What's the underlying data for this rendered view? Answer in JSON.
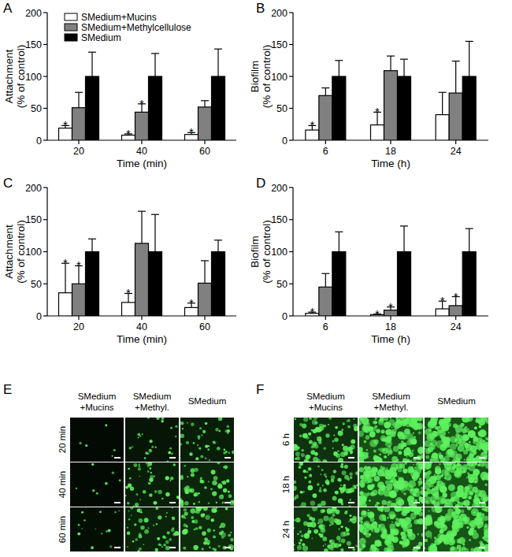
{
  "chart_data": [
    {
      "panel": "A",
      "type": "bar",
      "categories": [
        "20",
        "40",
        "60"
      ],
      "xlabel": "Time (min)",
      "ylabel": [
        "Attachment",
        "(% of control)"
      ],
      "ylim": [
        0,
        200
      ],
      "yticks": [
        0,
        50,
        100,
        150,
        200
      ],
      "legend": "upper left",
      "annotation": "*",
      "series": [
        {
          "name": "SMedium+Mucins",
          "color": "#ffffff",
          "values": [
            19,
            8,
            9
          ],
          "errors": [
            4,
            2,
            3
          ],
          "significant": [
            true,
            true,
            true
          ]
        },
        {
          "name": "SMedium+Methylcellulose",
          "color": "#808080",
          "values": [
            51,
            44,
            52
          ],
          "errors": [
            24,
            13,
            10
          ],
          "significant": [
            false,
            true,
            false
          ]
        },
        {
          "name": "SMedium",
          "color": "#000000",
          "values": [
            100,
            100,
            100
          ],
          "errors": [
            38,
            36,
            43
          ],
          "significant": [
            false,
            false,
            false
          ]
        }
      ]
    },
    {
      "panel": "B",
      "type": "bar",
      "categories": [
        "6",
        "18",
        "24"
      ],
      "xlabel": "Time (h)",
      "ylabel": [
        "Biofilm",
        "(% of control)"
      ],
      "ylim": [
        0,
        200
      ],
      "yticks": [
        0,
        50,
        100,
        150,
        200
      ],
      "annotation": "*",
      "series": [
        {
          "name": "SMedium+Mucins",
          "color": "#ffffff",
          "values": [
            16,
            24,
            40
          ],
          "errors": [
            7,
            20,
            35
          ],
          "significant": [
            true,
            true,
            false
          ]
        },
        {
          "name": "SMedium+Methylcellulose",
          "color": "#808080",
          "values": [
            70,
            109,
            74
          ],
          "errors": [
            12,
            23,
            50
          ],
          "significant": [
            false,
            false,
            false
          ]
        },
        {
          "name": "SMedium",
          "color": "#000000",
          "values": [
            100,
            100,
            100
          ],
          "errors": [
            25,
            27,
            55
          ],
          "significant": [
            false,
            false,
            false
          ]
        }
      ]
    },
    {
      "panel": "C",
      "type": "bar",
      "categories": [
        "20",
        "40",
        "60"
      ],
      "xlabel": "Time (min)",
      "ylabel": [
        "Attachment",
        "(% of control)"
      ],
      "ylim": [
        0,
        200
      ],
      "yticks": [
        0,
        50,
        100,
        150,
        200
      ],
      "annotation": "*",
      "series": [
        {
          "name": "SMedium+Mucins",
          "color": "#ffffff",
          "values": [
            36,
            21,
            13
          ],
          "errors": [
            46,
            14,
            7
          ],
          "significant": [
            true,
            true,
            true
          ]
        },
        {
          "name": "SMedium+Methylcellulose",
          "color": "#808080",
          "values": [
            50,
            113,
            51
          ],
          "errors": [
            28,
            50,
            35
          ],
          "significant": [
            true,
            false,
            false
          ]
        },
        {
          "name": "SMedium",
          "color": "#000000",
          "values": [
            100,
            100,
            100
          ],
          "errors": [
            20,
            58,
            18
          ],
          "significant": [
            false,
            false,
            false
          ]
        }
      ]
    },
    {
      "panel": "D",
      "type": "bar",
      "categories": [
        "6",
        "18",
        "24"
      ],
      "xlabel": "Time (h)",
      "ylabel": [
        "Biofilm",
        "(% of control)"
      ],
      "ylim": [
        0,
        200
      ],
      "yticks": [
        0,
        50,
        100,
        150,
        200
      ],
      "annotation": "*",
      "series": [
        {
          "name": "SMedium+Mucins",
          "color": "#ffffff",
          "values": [
            4,
            2,
            11
          ],
          "errors": [
            2,
            1,
            12
          ],
          "significant": [
            true,
            true,
            true
          ]
        },
        {
          "name": "SMedium+Methylcellulose",
          "color": "#808080",
          "values": [
            45,
            9,
            16
          ],
          "errors": [
            21,
            5,
            14
          ],
          "significant": [
            false,
            true,
            true
          ]
        },
        {
          "name": "SMedium",
          "color": "#000000",
          "values": [
            100,
            100,
            100
          ],
          "errors": [
            31,
            40,
            36
          ],
          "significant": [
            false,
            false,
            false
          ]
        }
      ]
    }
  ],
  "images": [
    {
      "panel": "E",
      "columns": [
        [
          "SMedium",
          "+Mucins"
        ],
        [
          "SMedium",
          "+Methyl."
        ],
        [
          "SMedium"
        ]
      ],
      "rows": [
        "20 min",
        "40 min",
        "60 min"
      ],
      "coverage": [
        [
          0.02,
          0.15,
          0.25
        ],
        [
          0.03,
          0.25,
          0.35
        ],
        [
          0.08,
          0.3,
          0.4
        ]
      ]
    },
    {
      "panel": "F",
      "columns": [
        [
          "SMedium",
          "+Mucins"
        ],
        [
          "SMedium",
          "+Methyl."
        ],
        [
          "SMedium"
        ]
      ],
      "rows": [
        "6 h",
        "18 h",
        "24 h"
      ],
      "coverage": [
        [
          0.45,
          0.8,
          0.85
        ],
        [
          0.4,
          0.85,
          0.85
        ],
        [
          0.5,
          0.8,
          0.85
        ]
      ]
    }
  ]
}
